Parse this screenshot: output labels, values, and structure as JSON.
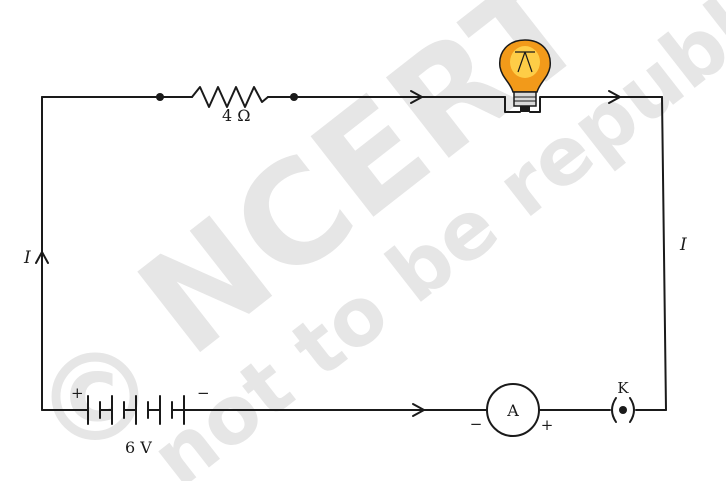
{
  "watermark": {
    "copyright_symbol": "©",
    "line1": "NCERT",
    "line2": "not to be republished"
  },
  "resistor": {
    "label": "4 Ω"
  },
  "current": {
    "left_label": "I",
    "right_label": "I"
  },
  "battery": {
    "label": "6 V",
    "plus": "+",
    "minus": "−"
  },
  "ammeter": {
    "symbol": "A",
    "plus": "+",
    "minus": "−"
  },
  "key": {
    "label": "K"
  },
  "colors": {
    "wire": "#1a1a1a",
    "bulb_glass": "#f29a1a",
    "bulb_glow": "#ffd34d",
    "bulb_base": "#d9d9d9",
    "watermark": "#e6e6e6"
  }
}
